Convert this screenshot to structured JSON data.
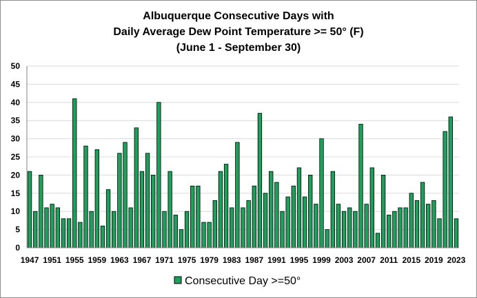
{
  "chart_data": {
    "type": "bar",
    "title_lines": [
      "Albuquerque Consecutive Days with",
      "Daily Average Dew Point Temperature >= 50° (F)",
      "(June 1 - September 30)"
    ],
    "start_year": 1947,
    "x_tick_labels": [
      "1947",
      "1951",
      "1955",
      "1959",
      "1963",
      "1967",
      "1971",
      "1975",
      "1979",
      "1983",
      "1987",
      "1991",
      "1995",
      "1999",
      "2003",
      "2007",
      "2011",
      "2015",
      "2019",
      "2023"
    ],
    "series": [
      {
        "name": "Consecutive Day >=50°",
        "color": "#1f9e5c",
        "values": [
          21,
          10,
          20,
          11,
          12,
          11,
          8,
          8,
          41,
          7,
          28,
          10,
          27,
          6,
          16,
          10,
          26,
          29,
          11,
          33,
          21,
          26,
          20,
          40,
          10,
          21,
          9,
          5,
          10,
          17,
          17,
          7,
          7,
          13,
          21,
          23,
          11,
          29,
          11,
          13,
          17,
          37,
          15,
          21,
          18,
          10,
          14,
          17,
          22,
          14,
          20,
          12,
          30,
          5,
          21,
          12,
          10,
          11,
          10,
          34,
          12,
          22,
          4,
          20,
          9,
          10,
          11,
          11,
          15,
          13,
          18,
          12,
          13,
          8,
          32,
          36,
          8
        ]
      }
    ],
    "ylim": [
      0,
      50
    ],
    "y_ticks": [
      0,
      5,
      10,
      15,
      20,
      25,
      30,
      35,
      40,
      45,
      50
    ],
    "grid": true,
    "legend_position": "bottom"
  }
}
